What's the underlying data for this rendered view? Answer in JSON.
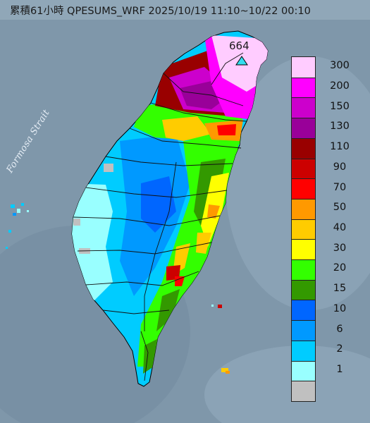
{
  "title": "累積61小時 QPESUMS_WRF 2025/10/19 11:10~10/22 00:10",
  "strait_label": "Formosa Strait",
  "max_marker": {
    "value": "664",
    "icon": "triangle-icon"
  },
  "legend": [
    {
      "label": "300",
      "color": "#ffccff"
    },
    {
      "label": "200",
      "color": "#ff00ff"
    },
    {
      "label": "150",
      "color": "#cc00cc"
    },
    {
      "label": "130",
      "color": "#990099"
    },
    {
      "label": "110",
      "color": "#990000"
    },
    {
      "label": "90",
      "color": "#cc0000"
    },
    {
      "label": "70",
      "color": "#ff0000"
    },
    {
      "label": "50",
      "color": "#ff9900"
    },
    {
      "label": "40",
      "color": "#ffcc00"
    },
    {
      "label": "30",
      "color": "#ffff00"
    },
    {
      "label": "20",
      "color": "#33ff00"
    },
    {
      "label": "15",
      "color": "#339900"
    },
    {
      "label": "10",
      "color": "#0066ff"
    },
    {
      "label": "6",
      "color": "#0099ff"
    },
    {
      "label": "2",
      "color": "#00ccff"
    },
    {
      "label": "1",
      "color": "#99ffff"
    },
    {
      "label": "",
      "color": "#c0c0c0"
    }
  ]
}
